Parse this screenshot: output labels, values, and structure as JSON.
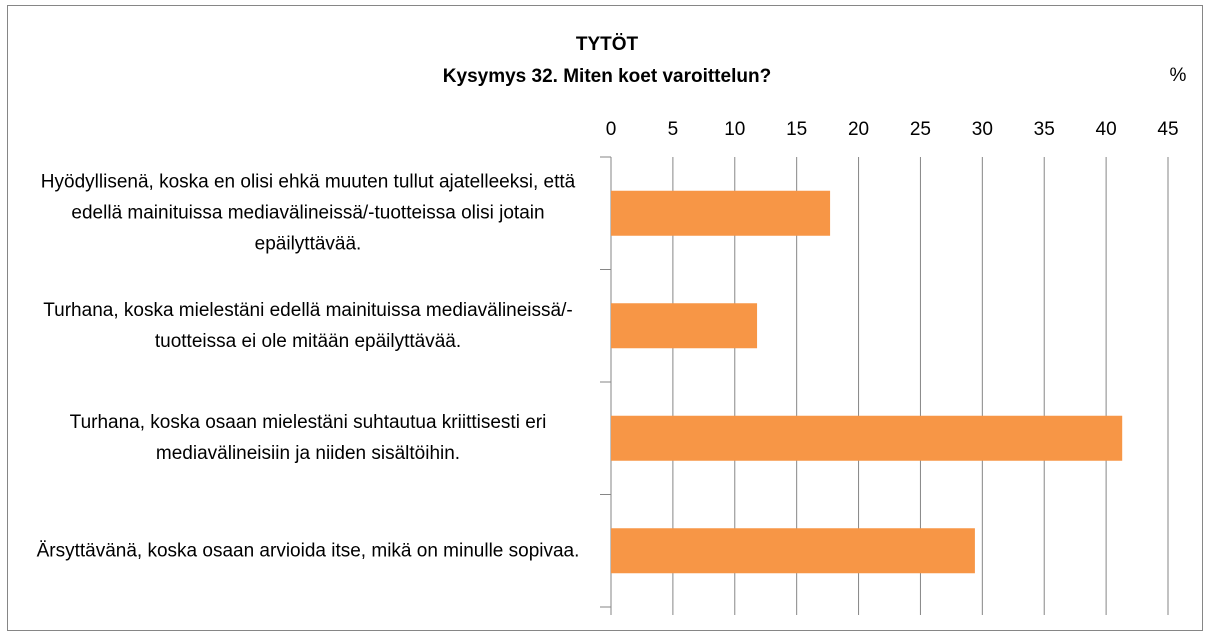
{
  "chart_data": {
    "type": "bar",
    "orientation": "horizontal",
    "title": "TYTÖT",
    "subtitle": "Kysymys 32. Miten koet varoittelun?",
    "xlabel": "%",
    "categories": [
      "Hyödyllisenä, koska en olisi ehkä muuten tullut ajatelleeksi, että edellä mainituissa mediavälineissä/-tuotteissa olisi jotain epäilyttävää.",
      "Turhana, koska mielestäni edellä mainituissa mediavälineissä/-tuotteissa ei ole mitään epäilyttävää.",
      "Turhana, koska osaan mielestäni suhtautua kriittisesti eri mediavälineisiin ja niiden sisältöihin.",
      "Ärsyttävänä, koska osaan arvioida itse, mikä on minulle sopivaa."
    ],
    "values": [
      17.7,
      11.8,
      41.3,
      29.4
    ],
    "color": "#f79646",
    "xlim": [
      0,
      45
    ],
    "xticks": [
      0,
      5,
      10,
      15,
      20,
      25,
      30,
      35,
      40,
      45
    ],
    "grid": true
  }
}
